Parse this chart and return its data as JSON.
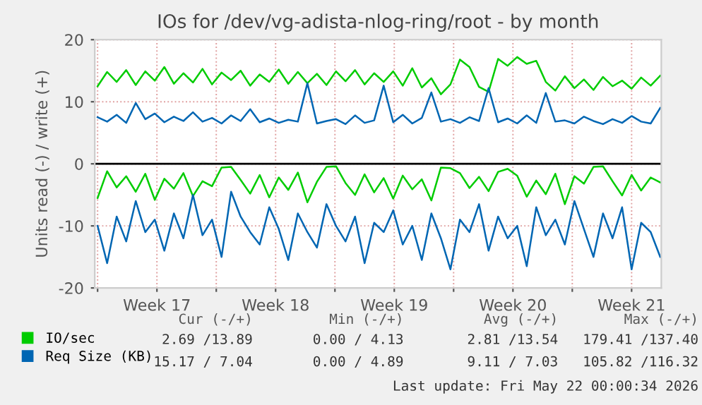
{
  "chart_data": {
    "type": "line",
    "title": "IOs for /dev/vg-adista-nlog-ring/root - by month",
    "ylabel": "Units read (-) / write (+)",
    "x": [
      "2026-04-20T00:00",
      "2026-04-20T13:30",
      "2026-04-21T03:00",
      "2026-04-21T16:30",
      "2026-04-22T06:00",
      "2026-04-22T19:30",
      "2026-04-23T09:00",
      "2026-04-23T22:30",
      "2026-04-24T12:00",
      "2026-04-25T01:30",
      "2026-04-25T15:00",
      "2026-04-26T04:30",
      "2026-04-26T18:00",
      "2026-04-27T07:30",
      "2026-04-27T21:00",
      "2026-04-28T10:30",
      "2026-04-29T00:00",
      "2026-04-29T13:30",
      "2026-04-30T03:00",
      "2026-04-30T16:30",
      "2026-05-01T06:00",
      "2026-05-01T19:30",
      "2026-05-02T09:00",
      "2026-05-02T22:30",
      "2026-05-03T12:00",
      "2026-05-04T01:30",
      "2026-05-04T15:00",
      "2026-05-05T04:30",
      "2026-05-05T18:00",
      "2026-05-06T07:30",
      "2026-05-06T21:00",
      "2026-05-07T10:30",
      "2026-05-08T00:00",
      "2026-05-08T13:30",
      "2026-05-09T03:00",
      "2026-05-09T16:30",
      "2026-05-10T06:00",
      "2026-05-10T19:30",
      "2026-05-11T09:00",
      "2026-05-11T22:30",
      "2026-05-12T12:00",
      "2026-05-13T01:30",
      "2026-05-13T15:00",
      "2026-05-14T04:30",
      "2026-05-14T18:00",
      "2026-05-15T07:30",
      "2026-05-15T21:00",
      "2026-05-16T10:30",
      "2026-05-17T00:00",
      "2026-05-17T13:30",
      "2026-05-18T03:00",
      "2026-05-18T16:30",
      "2026-05-19T06:00",
      "2026-05-19T19:30",
      "2026-05-20T09:00",
      "2026-05-20T22:30",
      "2026-05-21T12:00",
      "2026-05-22T01:30",
      "2026-05-22T15:00",
      "2026-05-23T04:30"
    ],
    "series": [
      {
        "name": "IO/sec",
        "color": "#00cc00",
        "values": [
          12.5,
          14.8,
          13.2,
          15.1,
          12.7,
          14.9,
          13.4,
          15.6,
          12.9,
          14.6,
          13.1,
          15.3,
          12.8,
          14.7,
          13.5,
          15.0,
          12.6,
          14.4,
          13.2,
          15.2,
          12.9,
          14.8,
          13.0,
          14.5,
          12.7,
          14.9,
          13.3,
          15.1,
          12.8,
          14.6,
          13.2,
          14.9,
          12.6,
          15.4,
          12.3,
          13.8,
          11.2,
          12.8,
          16.8,
          15.6,
          12.4,
          11.6,
          16.9,
          15.8,
          17.2,
          16.1,
          16.6,
          13.2,
          11.8,
          14.1,
          12.2,
          13.6,
          11.9,
          14.0,
          12.5,
          13.4,
          12.1,
          13.9,
          12.6,
          14.2
        ]
      },
      {
        "color": "#00cc00",
        "values": [
          -5.5,
          -1.2,
          -3.8,
          -2.0,
          -4.5,
          -1.6,
          -5.8,
          -2.4,
          -4.0,
          -1.5,
          -5.2,
          -2.8,
          -3.6,
          -0.6,
          -0.5,
          -2.6,
          -4.8,
          -1.8,
          -5.4,
          -2.2,
          -4.2,
          -1.4,
          -6.2,
          -2.9,
          -0.5,
          -0.4,
          -3.1,
          -5.0,
          -1.7,
          -4.6,
          -2.3,
          -5.6,
          -1.9,
          -4.1,
          -2.5,
          -5.9,
          -0.6,
          -0.7,
          -1.5,
          -3.9,
          -2.1,
          -4.4,
          -1.3,
          -0.8,
          -1.9,
          -5.3,
          -2.7,
          -4.9,
          -1.6,
          -6.5,
          -2.0,
          -3.2,
          -0.5,
          -0.4,
          -2.8,
          -5.1,
          -1.8,
          -4.3,
          -2.2,
          -3.0
        ]
      },
      {
        "name": "Req Size (KB)",
        "color": "#0066b3",
        "values": [
          7.5,
          6.8,
          7.9,
          6.6,
          9.8,
          7.2,
          8.1,
          6.7,
          7.6,
          6.9,
          8.3,
          6.8,
          7.4,
          6.5,
          7.8,
          6.9,
          8.8,
          6.7,
          7.3,
          6.6,
          7.1,
          6.8,
          13.0,
          6.5,
          6.9,
          7.2,
          6.4,
          7.8,
          6.6,
          7.0,
          12.6,
          6.7,
          7.9,
          6.5,
          7.4,
          11.5,
          6.8,
          7.2,
          6.6,
          7.5,
          6.9,
          12.2,
          6.7,
          7.3,
          6.5,
          7.8,
          6.6,
          11.4,
          6.8,
          7.0,
          6.5,
          7.6,
          6.9,
          6.4,
          7.2,
          6.6,
          7.7,
          6.8,
          6.5,
          9.0
        ]
      },
      {
        "color": "#0066b3",
        "values": [
          -10,
          -16,
          -8.5,
          -12.5,
          -6,
          -11,
          -9,
          -14,
          -8,
          -12,
          -5,
          -11.5,
          -9,
          -15,
          -4.5,
          -8.5,
          -11,
          -13,
          -7,
          -10.5,
          -15.5,
          -8,
          -11,
          -13.5,
          -6.5,
          -10,
          -12.5,
          -8.5,
          -16,
          -9.5,
          -11,
          -7.5,
          -13,
          -10,
          -15.5,
          -8,
          -12,
          -17,
          -9,
          -11,
          -6.5,
          -14,
          -8.5,
          -12,
          -10,
          -16.5,
          -7,
          -11.5,
          -9,
          -13,
          -6,
          -10.5,
          -15,
          -8,
          -12,
          -7,
          -17,
          -9.5,
          -11,
          -15
        ]
      }
    ],
    "xlim": [
      "2026-04-19T20:00",
      "2026-05-23T06:00"
    ],
    "xticks": [
      {
        "value": "2026-04-20",
        "label": null
      },
      {
        "value": "2026-04-23T12:00",
        "label": "Week 17"
      },
      {
        "value": "2026-04-27",
        "label": null
      },
      {
        "value": "2026-04-30T12:00",
        "label": "Week 18"
      },
      {
        "value": "2026-05-04",
        "label": null
      },
      {
        "value": "2026-05-07T12:00",
        "label": "Week 19"
      },
      {
        "value": "2026-05-11",
        "label": null
      },
      {
        "value": "2026-05-14T12:00",
        "label": "Week 20"
      },
      {
        "value": "2026-05-18",
        "label": null
      },
      {
        "value": "2026-05-21T12:00",
        "label": "Week 21"
      }
    ],
    "ylim": [
      -20,
      20
    ],
    "yticks": [
      -20,
      -10,
      0,
      10,
      20
    ],
    "ref_lines": [
      {
        "axis": "y",
        "value": 0,
        "color": "#000000"
      }
    ],
    "grid": true,
    "legend": "bottom",
    "line_style": "solid",
    "marker": "none",
    "annotations": [
      "Cur (-/+)",
      "Min (-/+)",
      "Avg (-/+)",
      "Max (-/+)",
      "2.69 /13.89",
      "0.00 / 4.13",
      "2.81 /13.54",
      "179.41 /137.40",
      "15.17 / 7.04",
      "0.00 / 4.89",
      "9.11 / 7.03",
      "105.82 /116.32",
      "Last update: Fri May 22 00:00:34 2026"
    ]
  }
}
